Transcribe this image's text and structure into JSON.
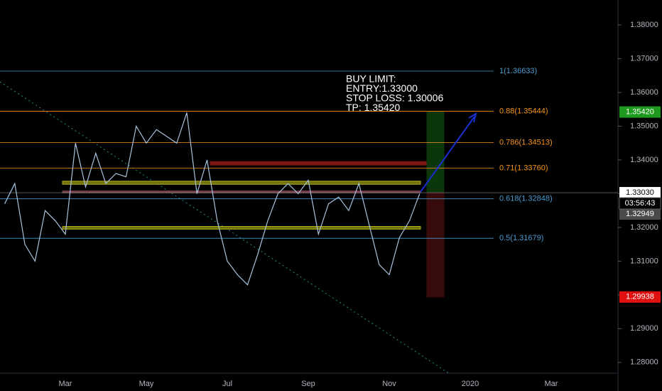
{
  "chart_data": {
    "type": "line",
    "categories": [
      null,
      null,
      null,
      null,
      null,
      null,
      "Mar",
      null,
      null,
      null,
      null,
      null,
      null,
      null,
      "May",
      null,
      null,
      null,
      null,
      null,
      null,
      null,
      "Jul",
      null,
      null,
      null,
      null,
      null,
      null,
      null,
      "Sep",
      null,
      null,
      null,
      null,
      null,
      null,
      null,
      "Nov",
      null,
      null,
      null,
      null,
      null,
      null,
      null,
      "2020",
      null,
      null,
      null,
      null,
      null,
      null,
      null,
      "Mar",
      null,
      null,
      null,
      null
    ],
    "series": [
      {
        "color": "#a9c3de",
        "values": [
          1.327,
          1.333,
          1.315,
          1.31,
          1.325,
          1.322,
          1.318,
          1.345,
          1.332,
          1.342,
          1.333,
          1.336,
          1.335,
          1.35,
          1.345,
          1.349,
          1.347,
          1.345,
          1.354,
          1.33,
          1.34,
          1.322,
          1.31,
          1.306,
          1.303,
          1.312,
          1.322,
          1.33,
          1.333,
          1.33,
          1.334,
          1.318,
          1.327,
          1.329,
          1.325,
          1.333,
          1.321,
          1.309,
          1.306,
          1.317,
          1.322,
          1.33,
          null,
          null,
          null,
          null,
          null,
          null,
          null,
          null,
          null,
          null,
          null,
          null,
          null,
          null,
          null,
          null,
          null
        ]
      }
    ],
    "ylim": [
      1.2768,
      1.3874
    ],
    "yticks": [
      {
        "value": 1.28,
        "label": "1.28000"
      },
      {
        "value": 1.29,
        "label": "1.29000"
      },
      {
        "value": 1.3,
        "label": "1.30000"
      },
      {
        "value": 1.31,
        "label": "1.31000"
      },
      {
        "value": 1.32,
        "label": "1.32000"
      },
      {
        "value": 1.33,
        "label": "1.33000"
      },
      {
        "value": 1.34,
        "label": "1.34000"
      },
      {
        "value": 1.35,
        "label": "1.35000"
      },
      {
        "value": 1.36,
        "label": "1.36000"
      },
      {
        "value": 1.37,
        "label": "1.37000"
      },
      {
        "value": 1.38,
        "label": "1.38000"
      }
    ],
    "levels": [
      {
        "label": "1(1.36633)",
        "value": 1.36633,
        "color": "#4a9bd1"
      },
      {
        "label": "0.88(1.35444)",
        "value": 1.35444,
        "color": "#f7931a"
      },
      {
        "label": "0.786(1.34513)",
        "value": 1.34513,
        "color": "#f7931a"
      },
      {
        "label": "0.71(1.33760)",
        "value": 1.3376,
        "color": "#f7931a"
      },
      {
        "label": "0.618(1.32848)",
        "value": 1.32848,
        "color": "#4a9bd1"
      },
      {
        "label": "0.5(1.31679)",
        "value": 1.31679,
        "color": "#4a9bd1"
      }
    ],
    "zones": [
      {
        "low": 1.3385,
        "high": 1.3395,
        "color": "#8b1a1a"
      },
      {
        "low": 1.3328,
        "high": 1.3337,
        "color": "#7a7a10"
      },
      {
        "low": 1.3302,
        "high": 1.3308,
        "color": "#8a4a55"
      },
      {
        "low": 1.3195,
        "high": 1.3203,
        "color": "#7a7a10"
      },
      {
        "low": 1.3303,
        "high": 1.3542,
        "color": "#0d3d0d"
      },
      {
        "low": 1.29938,
        "high": 1.3303,
        "color": "#3d0d0d"
      }
    ],
    "price_tags": [
      {
        "label": "1.35420",
        "value": 1.3542,
        "color": "#1e9a1e"
      },
      {
        "label": "1.33030",
        "value": 1.3303,
        "color": "#ffffff"
      },
      {
        "label": "1.32949",
        "value": 1.32949,
        "color": "#4a4a4a"
      },
      {
        "label": "1.29938",
        "value": 1.29938,
        "color": "#e01010"
      }
    ],
    "countdown": "03:56:43",
    "annotation": [
      "BUY LIMIT:",
      "ENTRY:1.33000",
      "STOP LOSS: 1.30006",
      "TP: 1.35420"
    ]
  }
}
